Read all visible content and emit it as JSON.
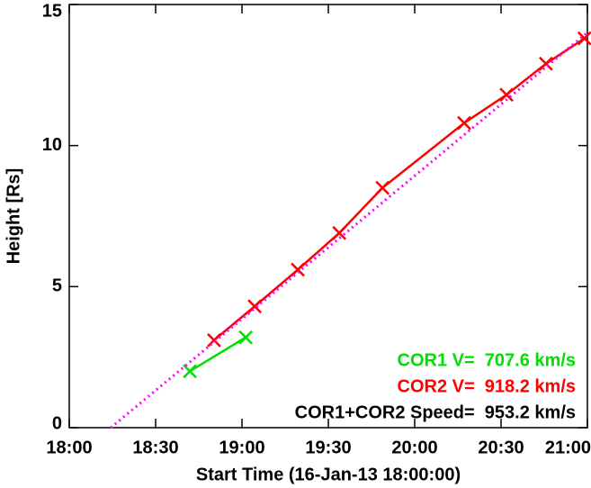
{
  "chart_data": {
    "type": "line",
    "xlabel": "Start Time (16-Jan-13 18:00:00)",
    "ylabel": "Height [Rs]",
    "xlim": [
      0,
      180
    ],
    "xticks": [
      {
        "value": 0,
        "label": "18:00"
      },
      {
        "value": 30,
        "label": "18:30"
      },
      {
        "value": 60,
        "label": "19:00"
      },
      {
        "value": 90,
        "label": "19:30"
      },
      {
        "value": 120,
        "label": "20:00"
      },
      {
        "value": 150,
        "label": "20:30"
      },
      {
        "value": 180,
        "label": "21:00"
      }
    ],
    "ylim": [
      0,
      15
    ],
    "yticks": [
      0,
      5,
      10,
      15
    ],
    "series": [
      {
        "name": "COR1",
        "color": "#00e000",
        "x": [
          41.9,
          61.3
        ],
        "values": [
          2.0,
          3.2
        ]
      },
      {
        "name": "COR2",
        "color": "#ff0000",
        "x": [
          50.3,
          64.4,
          79.4,
          93.8,
          108.8,
          137.2,
          151.9,
          165.6,
          179
        ],
        "values": [
          3.1,
          4.3,
          5.6,
          6.9,
          8.5,
          10.8,
          11.8,
          12.9,
          13.8
        ]
      },
      {
        "name": "COR1+COR2 fit",
        "color": "#ff00ff",
        "dotted": true,
        "x": [
          14.4,
          180
        ],
        "values": [
          0,
          14.0
        ]
      }
    ],
    "annotations": [
      {
        "text": "COR1 V=  707.6 km/s",
        "color": "#00e000"
      },
      {
        "text": "COR2 V=  918.2 km/s",
        "color": "#ff0000"
      },
      {
        "text": "COR1+COR2 Speed=  953.2 km/s",
        "color": "#000000"
      }
    ]
  }
}
